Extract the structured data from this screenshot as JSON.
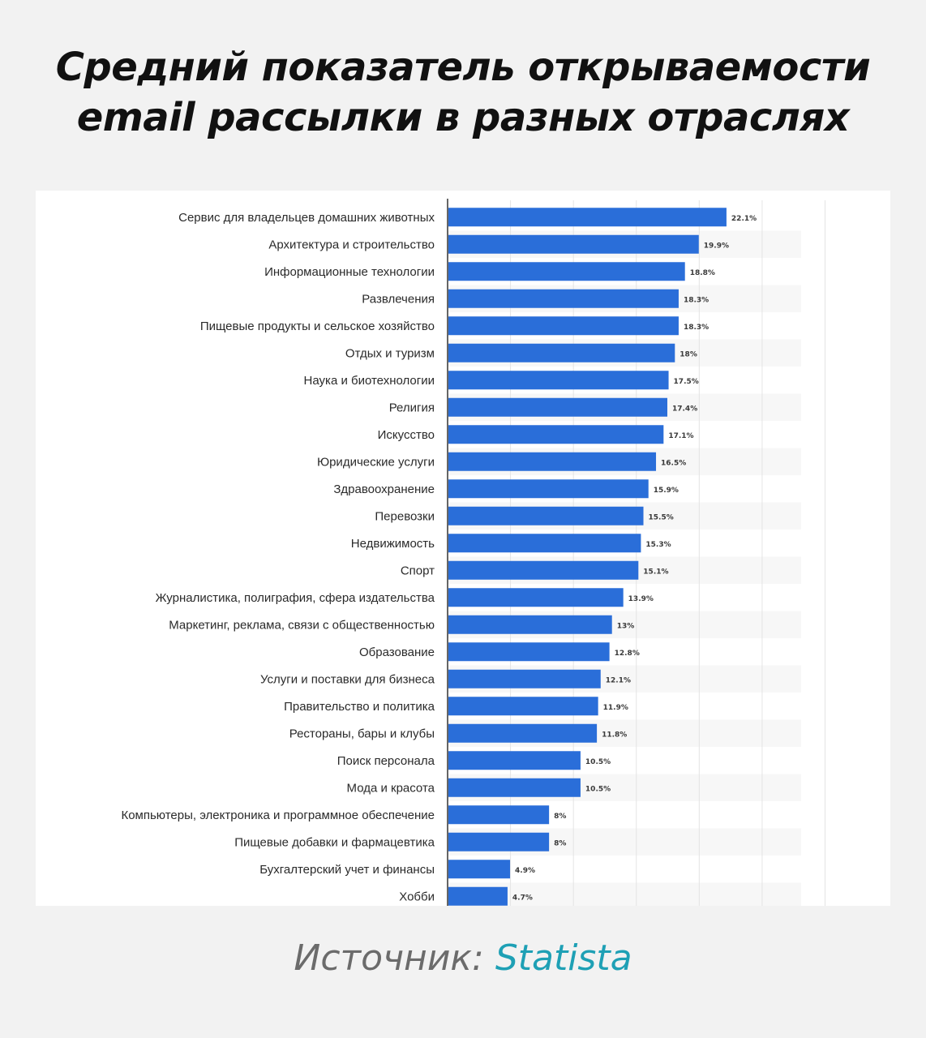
{
  "title": {
    "line1": "Средний показатель открываемости",
    "line2": "email рассылки в разных отраслях"
  },
  "source": {
    "prefix": "Источник: ",
    "name": "Statista"
  },
  "colors": {
    "bar": "#2a6ed9",
    "background": "#f2f2f2",
    "panel": "#ffffff",
    "source_accent": "#1ea0b5"
  },
  "chart_data": {
    "type": "bar",
    "orientation": "horizontal",
    "title": "",
    "xlabel": "",
    "ylabel": "",
    "xlim": [
      0,
      30
    ],
    "grid": true,
    "value_suffix": "%",
    "categories": [
      "Сервис для владельцев домашних животных",
      "Архитектура и строительство",
      "Информационные технологии",
      "Развлечения",
      "Пищевые продукты и сельское хозяйство",
      "Отдых и туризм",
      "Наука и биотехнологии",
      "Религия",
      "Искусство",
      "Юридические услуги",
      "Здравоохранение",
      "Перевозки",
      "Недвижимость",
      "Спорт",
      "Журналистика, полиграфия, сфера издательства",
      "Маркетинг, реклама, связи с общественностью",
      "Образование",
      "Услуги и поставки для бизнеса",
      "Правительство и политика",
      "Рестораны, бары и клубы",
      "Поиск персонала",
      "Мода и красота",
      "Компьютеры, электроника и программное обеспечение",
      "Пищевые добавки и фармацевтика",
      "Бухгалтерский учет и финансы",
      "Хобби"
    ],
    "values": [
      22.1,
      19.9,
      18.8,
      18.3,
      18.3,
      18,
      17.5,
      17.4,
      17.1,
      16.5,
      15.9,
      15.5,
      15.3,
      15.1,
      13.9,
      13,
      12.8,
      12.1,
      11.9,
      11.8,
      10.5,
      10.5,
      8,
      8,
      4.9,
      4.7
    ],
    "value_labels": [
      "22.1%",
      "19.9%",
      "18.8%",
      "18.3%",
      "18.3%",
      "18%",
      "17.5%",
      "17.4%",
      "17.1%",
      "16.5%",
      "15.9%",
      "15.5%",
      "15.3%",
      "15.1%",
      "13.9%",
      "13%",
      "12.8%",
      "12.1%",
      "11.9%",
      "11.8%",
      "10.5%",
      "10.5%",
      "8%",
      "8%",
      "4.9%",
      "4.7%"
    ]
  }
}
